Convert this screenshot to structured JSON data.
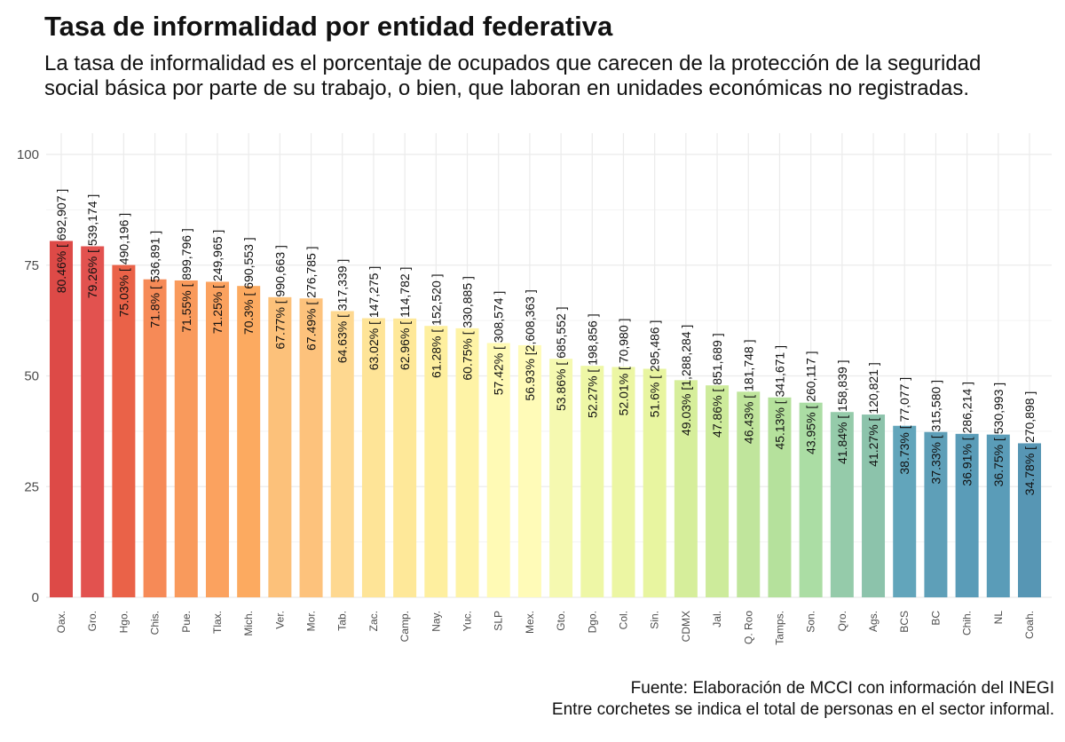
{
  "chart_data": {
    "type": "bar",
    "title": "Tasa de informalidad por entidad federativa",
    "subtitle": "La tasa de informalidad es el porcentaje de ocupados que carecen de la protección de la seguridad social básica por parte de su trabajo, o bien, que laboran en unidades económicas no registradas.",
    "caption": [
      "Fuente: Elaboración de MCCI con información del INEGI",
      "Entre corchetes se indica el total de personas en el sector informal."
    ],
    "xlabel": "",
    "ylabel": "",
    "ylim": [
      0,
      100
    ],
    "yticks": [
      0,
      25,
      50,
      75,
      100
    ],
    "grid": true,
    "categories": [
      "Oax.",
      "Gro.",
      "Hgo.",
      "Chis.",
      "Pue.",
      "Tlax.",
      "Mich.",
      "Ver.",
      "Mor.",
      "Tab.",
      "Zac.",
      "Camp.",
      "Nay.",
      "Yuc.",
      "SLP",
      "Mex.",
      "Gto.",
      "Dgo.",
      "Col.",
      "Sin.",
      "CDMX",
      "Jal.",
      "Q. Roo",
      "Tamps.",
      "Son.",
      "Qro.",
      "Ags.",
      "BCS",
      "BC",
      "Chih.",
      "NL",
      "Coah."
    ],
    "values": [
      80.46,
      79.26,
      75.03,
      71.8,
      71.55,
      71.25,
      70.3,
      67.77,
      67.49,
      64.63,
      63.02,
      62.96,
      61.28,
      60.75,
      57.42,
      56.93,
      53.86,
      52.27,
      52.01,
      51.6,
      49.03,
      47.86,
      46.43,
      45.13,
      43.95,
      41.84,
      41.27,
      38.73,
      37.33,
      36.91,
      36.75,
      34.78
    ],
    "data_labels": [
      "80.46% [ 692,907 ]",
      "79.26% [ 539,174 ]",
      "75.03% [ 490,196 ]",
      "71.8% [ 536,891 ]",
      "71.55% [ 899,796 ]",
      "71.25% [ 249,965 ]",
      "70.3% [ 690,553 ]",
      "67.77% [ 990,663 ]",
      "67.49% [ 276,785 ]",
      "64.63% [ 317,339 ]",
      "63.02% [ 147,275 ]",
      "62.96% [ 114,782 ]",
      "61.28% [ 152,520 ]",
      "60.75% [ 330,885 ]",
      "57.42% [ 308,574 ]",
      "56.93% [2,608,363 ]",
      "53.86% [ 685,552 ]",
      "52.27% [ 198,856 ]",
      "52.01% [ 70,980 ]",
      "51.6% [ 295,486 ]",
      "49.03% [1,288,284 ]",
      "47.86% [ 851,689 ]",
      "46.43% [ 181,748 ]",
      "45.13% [ 341,671 ]",
      "43.95% [ 260,117 ]",
      "41.84% [ 158,839 ]",
      "41.27% [ 120,821 ]",
      "38.73% [ 77,077 ]",
      "37.33% [ 315,580 ]",
      "36.91% [ 286,214 ]",
      "36.75% [ 530,993 ]",
      "34.78% [ 270,898 ]"
    ],
    "colors": [
      "#dd4a47",
      "#e2524f",
      "#ea6248",
      "#f68a57",
      "#f99a5c",
      "#fba25f",
      "#fcaa60",
      "#fcc17a",
      "#fdc27c",
      "#fed890",
      "#fee497",
      "#fee899",
      "#feef9f",
      "#fef3a6",
      "#fffab5",
      "#fffbb8",
      "#f5f9b0",
      "#eef7a6",
      "#ecf6a3",
      "#e8f5a0",
      "#d6ee9b",
      "#cdeb9b",
      "#c0e59c",
      "#b5e19c",
      "#abdda4",
      "#95cbaa",
      "#8cc3ab",
      "#62a5bb",
      "#5e9fb8",
      "#5a9cb8",
      "#5a9cb8",
      "#5796b4"
    ]
  }
}
